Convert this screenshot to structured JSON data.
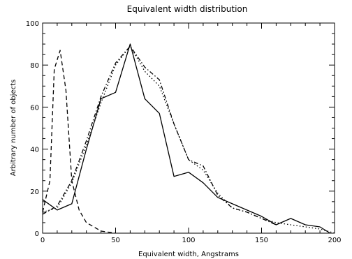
{
  "chart_data": {
    "type": "line",
    "title": "Equivalent width distribution",
    "xlabel": "Equivalent width, Angstrams",
    "ylabel": "Arbitrary number of objects",
    "xlim": [
      0,
      200
    ],
    "ylim": [
      0,
      100
    ],
    "x_ticks": [
      "0",
      "50",
      "100",
      "150",
      "200"
    ],
    "y_ticks": [
      "0",
      "20",
      "40",
      "60",
      "80",
      "100"
    ],
    "grid": false,
    "legend": "none",
    "series": [
      {
        "style": "solid",
        "color": "#000000",
        "x": [
          0,
          10,
          20,
          30,
          40,
          50,
          60,
          70,
          80,
          90,
          100,
          110,
          120,
          130,
          140,
          150,
          160,
          170,
          180,
          190,
          197
        ],
        "y": [
          16,
          11,
          14,
          40,
          64,
          67,
          90,
          64,
          57,
          27,
          29,
          24,
          17,
          14,
          11,
          8,
          4,
          7,
          4,
          3,
          0
        ]
      },
      {
        "style": "dotted",
        "color": "#000000",
        "x": [
          0,
          10,
          20,
          30,
          40,
          50,
          60,
          70,
          80,
          90,
          100,
          110,
          120,
          130,
          140,
          150,
          160,
          170,
          180,
          190,
          200
        ],
        "y": [
          10,
          12,
          24,
          42,
          62,
          80,
          89,
          77,
          70,
          52,
          35,
          30,
          19,
          12,
          10,
          7,
          5,
          4,
          3,
          2,
          0
        ]
      },
      {
        "style": "dash-dot",
        "color": "#000000",
        "x": [
          0,
          10,
          20,
          30,
          40,
          50,
          60,
          70,
          80,
          90,
          100,
          110,
          120,
          130,
          140,
          150,
          160
        ],
        "y": [
          9,
          13,
          25,
          44,
          65,
          81,
          89,
          79,
          73,
          52,
          35,
          32,
          18,
          12,
          10,
          7,
          4
        ]
      },
      {
        "style": "dashed",
        "color": "#000000",
        "x": [
          0,
          5,
          8,
          12,
          16,
          20,
          25,
          30,
          40,
          50
        ],
        "y": [
          10,
          25,
          78,
          87,
          68,
          25,
          11,
          5,
          1,
          0
        ]
      }
    ]
  }
}
